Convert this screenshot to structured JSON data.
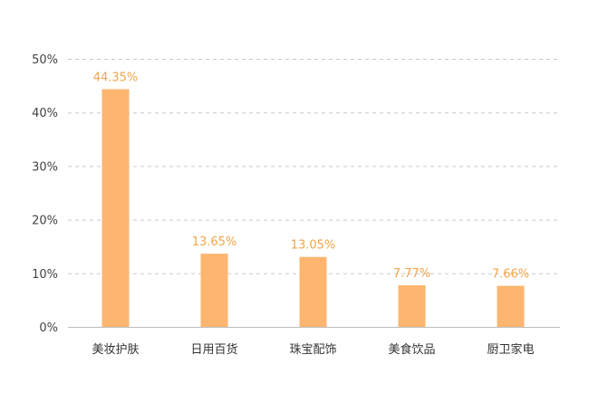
{
  "chart_data": {
    "type": "bar",
    "categories": [
      "美妆护肤",
      "日用百货",
      "珠宝配饰",
      "美食饮品",
      "厨卫家电"
    ],
    "values": [
      44.35,
      13.65,
      13.05,
      7.77,
      7.66
    ],
    "data_labels": [
      "44.35%",
      "13.65%",
      "13.05%",
      "7.77%",
      "7.66%"
    ],
    "yticks": [
      0,
      10,
      20,
      30,
      40,
      50
    ],
    "ytick_labels": [
      "0%",
      "10%",
      "20%",
      "30%",
      "40%",
      "50%"
    ],
    "ylim": [
      0,
      50
    ],
    "grid": true,
    "legend": "none",
    "title": "",
    "xlabel": "",
    "ylabel": "",
    "colors": {
      "bar": "#FDB56F",
      "data_label": "#F2A54A",
      "grid": "#C8C8C8"
    }
  }
}
